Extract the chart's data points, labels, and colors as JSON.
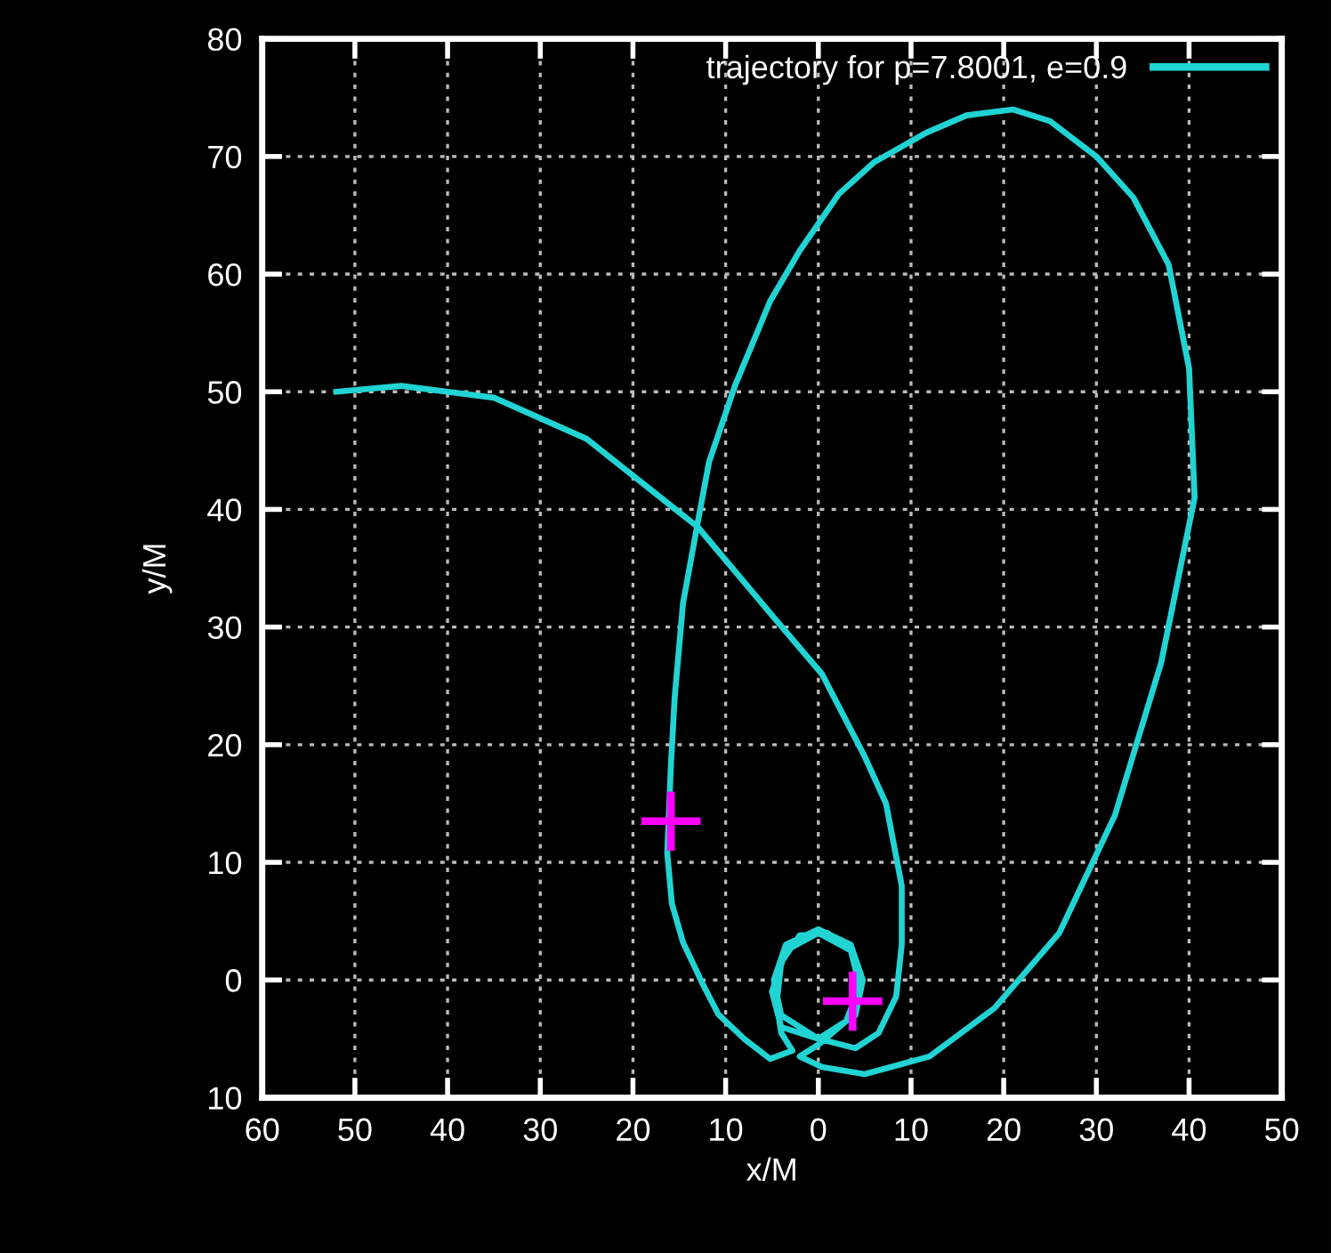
{
  "chart_data": {
    "type": "line",
    "xlabel": "x/M",
    "ylabel": "y/M",
    "xlim": [
      -60,
      50
    ],
    "ylim": [
      -10,
      80
    ],
    "xticks": [
      {
        "value": -60,
        "label": "60"
      },
      {
        "value": -50,
        "label": "50"
      },
      {
        "value": -40,
        "label": "40"
      },
      {
        "value": -30,
        "label": "30"
      },
      {
        "value": -20,
        "label": "20"
      },
      {
        "value": -10,
        "label": "10"
      },
      0,
      10,
      20,
      30,
      40,
      50
    ],
    "yticks": [
      {
        "value": -10,
        "label": "10"
      },
      0,
      10,
      20,
      30,
      40,
      50,
      60,
      70,
      80
    ],
    "grid": true,
    "legend": "top right",
    "series": [
      {
        "name": "trajectory for p=7.8001, e=0.9",
        "color": "#22d3d3",
        "marker": "none",
        "x": [
          -52,
          -45,
          -35,
          -25,
          -13,
          -5,
          0.4,
          5,
          7.3,
          9,
          9,
          8.4,
          6.5,
          4,
          0,
          -4,
          -4.8,
          -3.5,
          0,
          3.5,
          4.8,
          4,
          0,
          -4,
          -5,
          -3.5,
          0,
          3.5,
          4.5,
          3,
          0,
          -2,
          0.4,
          5,
          12,
          19,
          26,
          32,
          37,
          40.6,
          40,
          37.8,
          34,
          30,
          25,
          21,
          16,
          11.6,
          6,
          2.2,
          -2,
          -5.2,
          -9,
          -11.8,
          -13.1,
          -14.6,
          -15.5,
          -15.9,
          -16.3,
          -15.8,
          -14.6,
          -12.5,
          -10.8,
          -8,
          -5.2,
          -2.8,
          -4,
          -4.5,
          -4,
          -2,
          1,
          3.5,
          4.3,
          3.7
        ],
        "values": [
          50,
          50.5,
          49.5,
          46,
          38.5,
          31,
          26,
          19,
          15,
          8,
          3,
          -1.4,
          -4.5,
          -5.8,
          -5,
          -3,
          0,
          3,
          4.3,
          3,
          0,
          -3,
          -5,
          -4,
          -1,
          2.5,
          4,
          2.5,
          -0.5,
          -3.5,
          -5.5,
          -6.5,
          -7.4,
          -8,
          -6.5,
          -2.4,
          4,
          14,
          27,
          41,
          52,
          60.8,
          66.5,
          70,
          73,
          74,
          73.5,
          72,
          69.5,
          66.8,
          62,
          57.7,
          50.5,
          44,
          38.5,
          32,
          24,
          18.3,
          10.8,
          6.5,
          3.2,
          -0.3,
          -2.9,
          -5,
          -6.7,
          -6,
          -4.5,
          -2,
          1.5,
          3.8,
          4,
          2.5,
          0,
          -1.8
        ]
      },
      {
        "color": "#ff00ff",
        "type": "scatter",
        "marker": "cross",
        "x": [
          -15.9,
          3.7
        ],
        "values": [
          13.5,
          -1.8
        ]
      }
    ]
  }
}
